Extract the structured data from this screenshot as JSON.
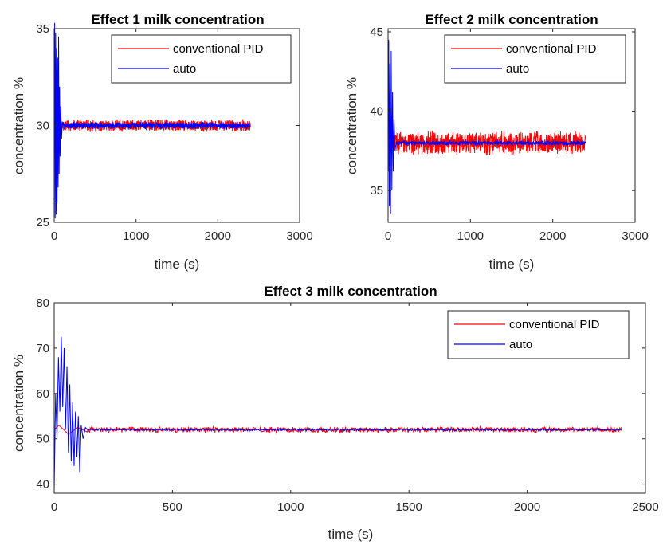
{
  "colors": {
    "conventional": "#ff0000",
    "auto": "#0000ff",
    "axis": "#262626"
  },
  "chart_data": [
    {
      "type": "line",
      "title": "Effect 1 milk concentration",
      "xlabel": "time (s)",
      "ylabel": "concentration %",
      "xlim": [
        0,
        3000
      ],
      "ylim": [
        25,
        35
      ],
      "xticks": [
        0,
        1000,
        2000,
        3000
      ],
      "yticks": [
        25,
        30,
        35
      ],
      "legend": "top-right",
      "grid": false,
      "series": [
        {
          "name": "conventional PID",
          "color": "#ff0000",
          "setpoint": 30,
          "noise": 0.35,
          "t_end": 2400,
          "transient": [
            [
              0,
              29.0
            ],
            [
              8,
              31.5
            ],
            [
              15,
              28.8
            ],
            [
              22,
              31.0
            ],
            [
              30,
              29.3
            ],
            [
              40,
              30.6
            ],
            [
              50,
              29.6
            ],
            [
              60,
              30.2
            ]
          ]
        },
        {
          "name": "auto",
          "color": "#0000ff",
          "setpoint": 30,
          "noise": 0.2,
          "t_end": 2400,
          "transient": [
            [
              0,
              30.0
            ],
            [
              6,
              35.3
            ],
            [
              12,
              25.2
            ],
            [
              18,
              34.8
            ],
            [
              24,
              25.4
            ],
            [
              30,
              34.0
            ],
            [
              36,
              26.0
            ],
            [
              42,
              33.5
            ],
            [
              48,
              26.8
            ],
            [
              54,
              34.6
            ],
            [
              60,
              27.5
            ],
            [
              66,
              32.0
            ],
            [
              72,
              28.4
            ],
            [
              80,
              31.0
            ],
            [
              90,
              29.3
            ],
            [
              100,
              30.2
            ]
          ]
        }
      ]
    },
    {
      "type": "line",
      "title": "Effect 2 milk concentration",
      "xlabel": "time (s)",
      "ylabel": "concentration %",
      "xlim": [
        0,
        3000
      ],
      "ylim": [
        33,
        45.2
      ],
      "xticks": [
        0,
        1000,
        2000,
        3000
      ],
      "yticks": [
        35,
        40,
        45
      ],
      "legend": "top-right",
      "grid": false,
      "series": [
        {
          "name": "conventional PID",
          "color": "#ff0000",
          "setpoint": 38,
          "noise": 0.8,
          "t_end": 2400,
          "transient": [
            [
              0,
              44.8
            ],
            [
              8,
              36.2
            ],
            [
              16,
              41.0
            ],
            [
              24,
              36.5
            ],
            [
              32,
              39.5
            ],
            [
              42,
              37.3
            ],
            [
              55,
              38.5
            ],
            [
              65,
              38.0
            ]
          ]
        },
        {
          "name": "auto",
          "color": "#0000ff",
          "setpoint": 38,
          "noise": 0.15,
          "t_end": 2400,
          "transient": [
            [
              0,
              38.0
            ],
            [
              8,
              44.5
            ],
            [
              15,
              34.0
            ],
            [
              22,
              43.0
            ],
            [
              30,
              33.5
            ],
            [
              38,
              43.8
            ],
            [
              46,
              35.0
            ],
            [
              54,
              41.2
            ],
            [
              62,
              36.2
            ],
            [
              72,
              39.5
            ],
            [
              85,
              37.5
            ],
            [
              100,
              38.1
            ]
          ]
        }
      ]
    },
    {
      "type": "line",
      "title": "Effect 3 milk concentration",
      "xlabel": "time (s)",
      "ylabel": "concentration %",
      "xlim": [
        0,
        2500
      ],
      "ylim": [
        38,
        80
      ],
      "xticks": [
        0,
        500,
        1000,
        1500,
        2000,
        2500
      ],
      "yticks": [
        40,
        50,
        60,
        70,
        80
      ],
      "legend": "top-right",
      "grid": false,
      "series": [
        {
          "name": "conventional PID",
          "color": "#ff0000",
          "setpoint": 52,
          "noise": 0.7,
          "t_end": 2400,
          "transient": [
            [
              0,
              52
            ],
            [
              20,
              53
            ],
            [
              60,
              51
            ],
            [
              100,
              52.5
            ],
            [
              140,
              51.5
            ]
          ]
        },
        {
          "name": "auto",
          "color": "#0000ff",
          "setpoint": 52,
          "noise": 0.25,
          "t_end": 2400,
          "transient": [
            [
              0,
              38.5
            ],
            [
              6,
              60
            ],
            [
              12,
              50
            ],
            [
              18,
              68
            ],
            [
              24,
              56
            ],
            [
              30,
              72.5
            ],
            [
              36,
              57
            ],
            [
              42,
              70
            ],
            [
              48,
              52
            ],
            [
              54,
              66
            ],
            [
              60,
              47
            ],
            [
              66,
              62
            ],
            [
              72,
              45
            ],
            [
              78,
              58
            ],
            [
              84,
              44
            ],
            [
              90,
              56
            ],
            [
              96,
              46
            ],
            [
              102,
              55
            ],
            [
              108,
              42.5
            ],
            [
              114,
              53
            ],
            [
              122,
              50
            ],
            [
              132,
              52.5
            ],
            [
              145,
              51.8
            ]
          ]
        }
      ]
    }
  ]
}
